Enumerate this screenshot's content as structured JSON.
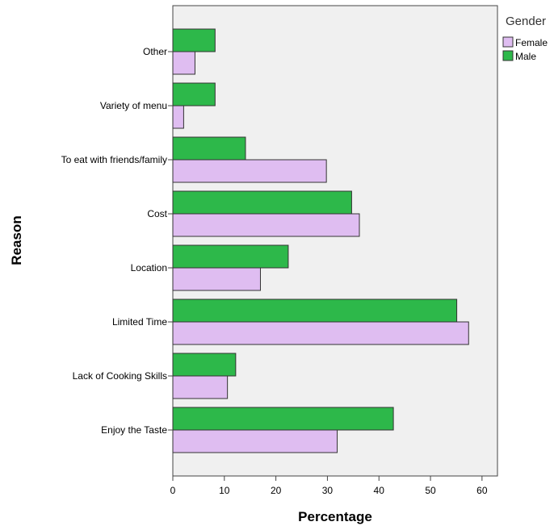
{
  "chart_data": {
    "type": "bar",
    "orientation": "horizontal",
    "xlabel": "Percentage",
    "ylabel": "Reason",
    "xlim": [
      0,
      63
    ],
    "xticks": [
      0,
      10,
      20,
      30,
      40,
      50,
      60
    ],
    "categories": [
      "Other",
      "Variety of menu",
      "To eat with friends/family",
      "Cost",
      "Location",
      "Limited Time",
      "Lack of Cooking Skills",
      "Enjoy the Taste"
    ],
    "series": [
      {
        "name": "Male",
        "color": "#2db84a",
        "values": [
          8.2,
          8.2,
          14.1,
          34.7,
          22.4,
          55.1,
          12.2,
          42.8
        ]
      },
      {
        "name": "Female",
        "color": "#dfbdf1",
        "values": [
          4.3,
          2.1,
          29.8,
          36.2,
          17.0,
          57.4,
          10.6,
          31.9
        ]
      }
    ],
    "legend": {
      "title": "Gender",
      "placement": "top-right",
      "entries": [
        "Female",
        "Male"
      ]
    },
    "grid": false,
    "background": "#f0f0f0"
  }
}
